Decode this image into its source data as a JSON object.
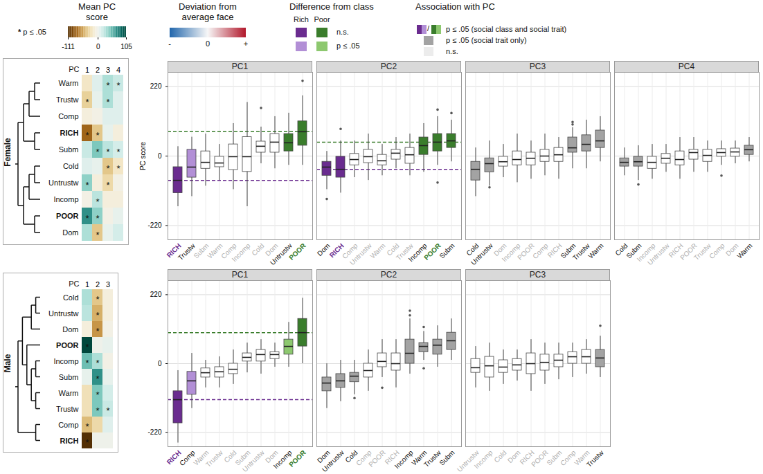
{
  "legends": {
    "mean_pc": {
      "title": "Mean PC score",
      "star": "*",
      "note": "p ≤ .05",
      "range": [
        -111,
        105
      ],
      "ticks": [
        -111,
        0,
        105
      ]
    },
    "deviation": {
      "title": "Deviation from average face",
      "tick_labels": [
        "-",
        "0",
        "+"
      ],
      "colors": [
        "#2166ac",
        "#f7f7f7",
        "#b2182b"
      ]
    },
    "class_diff": {
      "title": "Difference from class",
      "columns": [
        "Rich",
        "Poor"
      ],
      "items": [
        {
          "label": "n.s.",
          "colors": [
            "#6a2c8f",
            "#3a7d2c"
          ]
        },
        {
          "label": "p ≤ .05",
          "colors": [
            "#b28fd6",
            "#8dc86f"
          ]
        }
      ]
    },
    "association": {
      "title": "Association with PC",
      "items": [
        {
          "label": "p ≤ .05 (social class and social trait)",
          "colors": [
            "#6a2c8f",
            "#b28fd6",
            "#3a7d2c",
            "#8dc86f"
          ],
          "separator": "/"
        },
        {
          "label": "p ≤ .05 (social trait only)",
          "colors": [
            "#a3a3a3"
          ]
        },
        {
          "label": "n.s.",
          "colors": [
            "#ececec"
          ]
        }
      ]
    }
  },
  "heatmaps": [
    {
      "group": "Female",
      "x_label": "PC",
      "columns": [
        1,
        2,
        3,
        4
      ],
      "rows": [
        "Warm",
        "Trustw",
        "Comp",
        "RICH",
        "Subm",
        "Cold",
        "Untrustw",
        "Incomp",
        "POOR",
        "Dom"
      ],
      "tree": [
        [
          [
            [
              0,
              1
            ],
            2
          ],
          [
            3,
            4
          ]
        ],
        [
          [
            [
              5,
              6
            ],
            7
          ],
          [
            8,
            9
          ]
        ]
      ],
      "values": [
        [
          -20,
          10,
          30,
          20
        ],
        [
          -35,
          5,
          30,
          10
        ],
        [
          -10,
          -5,
          10,
          10
        ],
        [
          -80,
          -40,
          5,
          -10
        ],
        [
          20,
          45,
          25,
          15
        ],
        [
          10,
          5,
          -40,
          -20
        ],
        [
          40,
          -10,
          -30,
          -5
        ],
        [
          -5,
          25,
          -10,
          -10
        ],
        [
          70,
          40,
          -5,
          5
        ],
        [
          30,
          -40,
          5,
          15
        ]
      ],
      "significant": [
        [
          false,
          false,
          true,
          true
        ],
        [
          true,
          false,
          true,
          false
        ],
        [
          false,
          false,
          false,
          false
        ],
        [
          true,
          true,
          false,
          false
        ],
        [
          false,
          true,
          true,
          true
        ],
        [
          false,
          false,
          true,
          true
        ],
        [
          true,
          false,
          true,
          false
        ],
        [
          false,
          true,
          false,
          false
        ],
        [
          true,
          true,
          false,
          false
        ],
        [
          false,
          true,
          false,
          false
        ]
      ]
    },
    {
      "group": "Male",
      "x_label": "PC",
      "columns": [
        1,
        2,
        3
      ],
      "rows": [
        "Cold",
        "Untrustw",
        "Dom",
        "POOR",
        "Incomp",
        "Subm",
        "Warm",
        "Trustw",
        "Comp",
        "RICH"
      ],
      "tree": [
        [
          [
            [
              0,
              1
            ],
            2
          ],
          [
            3,
            [
              [
                4,
                5
              ],
              [
                6,
                7
              ]
            ]
          ]
        ],
        [
          8,
          9
        ]
      ],
      "values": [
        [
          30,
          -40,
          -10
        ],
        [
          25,
          -50,
          -10
        ],
        [
          -10,
          -60,
          -5
        ],
        [
          105,
          0,
          5
        ],
        [
          50,
          30,
          -5
        ],
        [
          5,
          70,
          5
        ],
        [
          -25,
          45,
          15
        ],
        [
          -25,
          45,
          20
        ],
        [
          -45,
          -30,
          10
        ],
        [
          -111,
          0,
          0
        ]
      ],
      "significant": [
        [
          false,
          true,
          false
        ],
        [
          false,
          true,
          false
        ],
        [
          false,
          true,
          false
        ],
        [
          true,
          false,
          false
        ],
        [
          true,
          true,
          false
        ],
        [
          false,
          true,
          false
        ],
        [
          false,
          true,
          false
        ],
        [
          false,
          true,
          true
        ],
        [
          true,
          false,
          false
        ],
        [
          true,
          false,
          false
        ]
      ]
    }
  ],
  "chart_data": [
    {
      "type": "box",
      "group": "Female",
      "title": "PC1",
      "ylabel": "PC score",
      "ylim": [
        -265,
        265
      ],
      "yticks": [
        -220,
        0,
        220
      ],
      "grid": true,
      "categories": [
        "RICH",
        "Trustw",
        "Subm",
        "Warm",
        "Comp",
        "Incomp",
        "Cold",
        "Dom",
        "Untrustw",
        "POOR"
      ],
      "q1": [
        -117,
        -68,
        -40,
        -35,
        -44,
        -50,
        11,
        11,
        15,
        33
      ],
      "median": [
        -77,
        -35,
        -20,
        -22,
        -2,
        -2,
        31,
        44,
        42,
        77
      ],
      "q3": [
        -35,
        20,
        15,
        -2,
        37,
        60,
        46,
        70,
        70,
        110
      ],
      "whisker_low": [
        -160,
        -128,
        -95,
        -77,
        -106,
        -160,
        -24,
        -40,
        -29,
        -29
      ],
      "whisker_high": [
        30,
        60,
        70,
        37,
        103,
        170,
        92,
        125,
        136,
        191
      ],
      "colors": [
        "#6a2c8f",
        "#b28fd6",
        "#ffffff",
        "#ffffff",
        "#ffffff",
        "#ffffff",
        "#ffffff",
        "#ffffff",
        "#3a7d2c",
        "#3a7d2c"
      ],
      "outliers": [
        {
          "category": "Cold",
          "value": 152
        },
        {
          "category": "POOR",
          "value": 238
        }
      ],
      "reference_lines": [
        {
          "value": -77,
          "color": "#6a2c8f"
        },
        {
          "value": 77,
          "color": "#3a7d2c"
        }
      ]
    },
    {
      "type": "box",
      "group": "Female",
      "title": "PC2",
      "ylim": [
        -265,
        265
      ],
      "yticks": [
        -220,
        0,
        220
      ],
      "grid": true,
      "categories": [
        "Dom",
        "RICH",
        "Comp",
        "Untrustw",
        "Warm",
        "Cold",
        "Trustw",
        "Incomp",
        "POOR",
        "Subm"
      ],
      "q1": [
        -62,
        -68,
        -29,
        -22,
        -29,
        -11,
        -24,
        4,
        15,
        26
      ],
      "median": [
        -35,
        -42,
        -11,
        -2,
        -15,
        9,
        4,
        33,
        44,
        48
      ],
      "q3": [
        -18,
        -2,
        7,
        20,
        4,
        20,
        26,
        59,
        70,
        70
      ],
      "whisker_low": [
        -106,
        -117,
        -68,
        -77,
        -62,
        -40,
        -62,
        -51,
        -29,
        -18
      ],
      "whisker_high": [
        15,
        48,
        48,
        70,
        37,
        59,
        70,
        103,
        125,
        114
      ],
      "colors": [
        "#6a2c8f",
        "#6a2c8f",
        "#ffffff",
        "#ffffff",
        "#ffffff",
        "#ffffff",
        "#ffffff",
        "#3a7d2c",
        "#3a7d2c",
        "#3a7d2c"
      ],
      "outliers": [
        {
          "category": "Dom",
          "value": -136
        },
        {
          "category": "RICH",
          "value": 86
        },
        {
          "category": "POOR",
          "value": 147
        },
        {
          "category": "POOR",
          "value": -84
        },
        {
          "category": "Subm",
          "value": 136
        }
      ],
      "reference_lines": [
        {
          "value": -42,
          "color": "#6a2c8f"
        },
        {
          "value": 44,
          "color": "#3a7d2c"
        }
      ]
    },
    {
      "type": "box",
      "group": "Female",
      "title": "PC3",
      "ylim": [
        -265,
        265
      ],
      "yticks": [
        -220,
        0,
        220
      ],
      "grid": true,
      "categories": [
        "Cold",
        "Untrustw",
        "Dom",
        "Incomp",
        "POOR",
        "Comp",
        "RICH",
        "Subm",
        "Trustw",
        "Warm"
      ],
      "q1": [
        -77,
        -51,
        -33,
        -29,
        -29,
        -18,
        -18,
        11,
        15,
        26
      ],
      "median": [
        -42,
        -24,
        -18,
        -11,
        -7,
        0,
        4,
        26,
        37,
        48
      ],
      "q3": [
        -18,
        -7,
        -2,
        15,
        11,
        20,
        26,
        59,
        66,
        81
      ],
      "whisker_low": [
        -128,
        -95,
        -68,
        -84,
        -73,
        -62,
        -73,
        -40,
        -40,
        -18
      ],
      "whisker_high": [
        26,
        48,
        37,
        70,
        48,
        70,
        59,
        90,
        114,
        125
      ],
      "colors": [
        "#a3a3a3",
        "#a3a3a3",
        "#ffffff",
        "#ffffff",
        "#ffffff",
        "#ffffff",
        "#ffffff",
        "#a3a3a3",
        "#a3a3a3",
        "#a3a3a3"
      ],
      "outliers": [
        {
          "category": "Untrustw",
          "value": -99
        },
        {
          "category": "Subm",
          "value": 100
        },
        {
          "category": "Subm",
          "value": 108
        }
      ]
    },
    {
      "type": "box",
      "group": "Female",
      "title": "PC4",
      "ylim": [
        -265,
        265
      ],
      "yticks": [
        -220,
        0,
        220
      ],
      "grid": true,
      "categories": [
        "Cold",
        "Subm",
        "Incomp",
        "Untrustw",
        "RICH",
        "POOR",
        "Trustw",
        "Comp",
        "Dom",
        "Warm"
      ],
      "q1": [
        -33,
        -33,
        -40,
        -24,
        -29,
        -11,
        -18,
        -2,
        -2,
        4
      ],
      "median": [
        -20,
        -18,
        -20,
        -7,
        -11,
        11,
        2,
        11,
        13,
        20
      ],
      "q3": [
        -7,
        -2,
        -2,
        7,
        15,
        20,
        20,
        22,
        24,
        33
      ],
      "whisker_low": [
        -62,
        -77,
        -73,
        -51,
        -73,
        -51,
        -51,
        -29,
        -24,
        -18
      ],
      "whisker_high": [
        26,
        33,
        37,
        37,
        59,
        59,
        48,
        48,
        48,
        59
      ],
      "colors": [
        "#a3a3a3",
        "#a3a3a3",
        "#ffffff",
        "#ffffff",
        "#ffffff",
        "#ffffff",
        "#ffffff",
        "#ffffff",
        "#ffffff",
        "#a3a3a3"
      ],
      "outliers": [
        {
          "category": "Subm",
          "value": -90
        },
        {
          "category": "Comp",
          "value": -62
        }
      ]
    },
    {
      "type": "box",
      "group": "Male",
      "title": "PC1",
      "ylim": [
        -265,
        265
      ],
      "yticks": [
        -220,
        0,
        220
      ],
      "grid": true,
      "categories": [
        "RICH",
        "Comp",
        "Warm",
        "Trustw",
        "Cold",
        "Subm",
        "Untrustw",
        "Dom",
        "Incomp",
        "POOR"
      ],
      "q1": [
        -190,
        -99,
        -44,
        -44,
        -33,
        7,
        7,
        15,
        29,
        55
      ],
      "median": [
        -115,
        -55,
        -29,
        -26,
        -18,
        20,
        29,
        29,
        55,
        99
      ],
      "q3": [
        -88,
        -26,
        -15,
        -11,
        0,
        33,
        44,
        37,
        77,
        143
      ],
      "whisker_low": [
        -253,
        -143,
        -77,
        -77,
        -66,
        -29,
        -33,
        -11,
        -11,
        0
      ],
      "whisker_high": [
        -22,
        33,
        11,
        22,
        44,
        66,
        77,
        66,
        132,
        209
      ],
      "colors": [
        "#6a2c8f",
        "#b28fd6",
        "#ffffff",
        "#ffffff",
        "#ffffff",
        "#ffffff",
        "#ffffff",
        "#ffffff",
        "#8dc86f",
        "#3a7d2c"
      ],
      "outliers": [],
      "reference_lines": [
        {
          "value": -115,
          "color": "#6a2c8f"
        },
        {
          "value": 99,
          "color": "#3a7d2c"
        }
      ]
    },
    {
      "type": "box",
      "group": "Male",
      "title": "PC2",
      "ylim": [
        -265,
        265
      ],
      "yticks": [
        -220,
        0,
        220
      ],
      "grid": true,
      "categories": [
        "Dom",
        "Untrustw",
        "Cold",
        "Comp",
        "POOR",
        "RICH",
        "Incomp",
        "Warm",
        "Trustw",
        "Subm"
      ],
      "q1": [
        -88,
        -77,
        -59,
        -44,
        -11,
        -22,
        0,
        37,
        29,
        44
      ],
      "median": [
        -62,
        -55,
        -40,
        -22,
        7,
        0,
        33,
        55,
        59,
        73
      ],
      "q3": [
        -44,
        -33,
        -29,
        0,
        33,
        33,
        77,
        66,
        77,
        99
      ],
      "whisker_low": [
        -143,
        -121,
        -99,
        -88,
        -44,
        -77,
        -33,
        11,
        -11,
        11
      ],
      "whisker_high": [
        0,
        11,
        11,
        44,
        77,
        77,
        143,
        103,
        121,
        143
      ],
      "colors": [
        "#a3a3a3",
        "#a3a3a3",
        "#a3a3a3",
        "#ffffff",
        "#ffffff",
        "#ffffff",
        "#a3a3a3",
        "#a3a3a3",
        "#a3a3a3",
        "#a3a3a3"
      ],
      "outliers": [
        {
          "category": "Cold",
          "value": -110
        },
        {
          "category": "POOR",
          "value": -77
        },
        {
          "category": "Incomp",
          "value": 169
        },
        {
          "category": "Incomp",
          "value": 154
        },
        {
          "category": "Warm",
          "value": 117
        },
        {
          "category": "Warm",
          "value": -15
        }
      ]
    },
    {
      "type": "box",
      "group": "Male",
      "title": "PC3",
      "ylim": [
        -265,
        265
      ],
      "yticks": [
        -220,
        0,
        220
      ],
      "grid": true,
      "categories": [
        "Untrustw",
        "Incomp",
        "Cold",
        "Dom",
        "RICH",
        "POOR",
        "Subm",
        "Comp",
        "Warm",
        "Trustw"
      ],
      "q1": [
        -29,
        -44,
        -29,
        -22,
        -33,
        -22,
        -11,
        0,
        0,
        -11
      ],
      "median": [
        -13,
        -7,
        -11,
        -4,
        0,
        4,
        11,
        22,
        22,
        18
      ],
      "q3": [
        15,
        22,
        11,
        15,
        33,
        29,
        29,
        37,
        44,
        44
      ],
      "whisker_low": [
        -77,
        -88,
        -66,
        -55,
        -88,
        -66,
        -51,
        -44,
        -33,
        -44
      ],
      "whisker_high": [
        55,
        66,
        44,
        44,
        77,
        66,
        66,
        66,
        77,
        88
      ],
      "colors": [
        "#ffffff",
        "#ffffff",
        "#ffffff",
        "#ffffff",
        "#ffffff",
        "#ffffff",
        "#ffffff",
        "#ffffff",
        "#ffffff",
        "#a3a3a3"
      ],
      "outliers": [
        {
          "category": "Trustw",
          "value": 121
        }
      ]
    }
  ]
}
